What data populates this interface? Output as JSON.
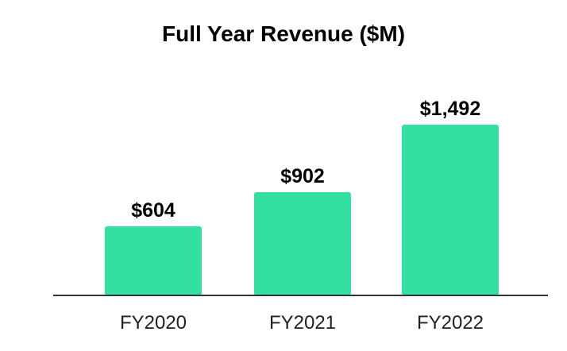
{
  "chart_data": {
    "type": "bar",
    "title": "Full Year Revenue ($M)",
    "categories": [
      "FY2020",
      "FY2021",
      "FY2022"
    ],
    "values": [
      604,
      902,
      1492
    ],
    "value_labels": [
      "$604",
      "$902",
      "$1,492"
    ],
    "xlabel": "",
    "ylabel": "",
    "ylim": [
      0,
      1492
    ],
    "grid": false,
    "legend": "none",
    "colors": {
      "bar": "#34e0a1",
      "axis": "#333333",
      "text": "#000000"
    }
  }
}
